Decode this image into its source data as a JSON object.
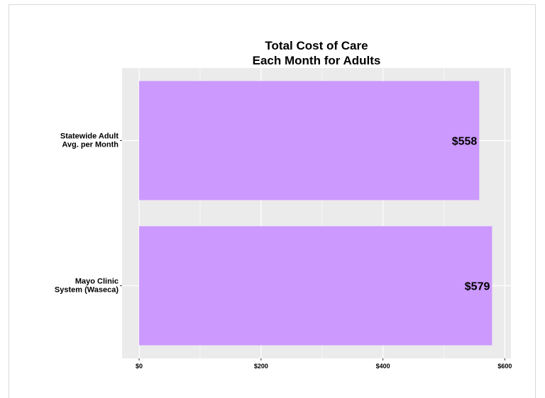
{
  "chart_data": {
    "type": "bar",
    "orientation": "horizontal",
    "title": [
      "Total Cost of Care",
      "Each Month for Adults"
    ],
    "categories": [
      [
        "Statewide Adult",
        "Avg. per Month"
      ],
      [
        "Mayo Clinic",
        "System (Waseca)"
      ]
    ],
    "values": [
      558,
      579
    ],
    "value_labels": [
      "$558",
      "$579"
    ],
    "xticks": [
      0,
      200,
      400,
      600
    ],
    "xtick_labels": [
      "$0",
      "$200",
      "$400",
      "$600"
    ],
    "xlim": [
      -28,
      610
    ],
    "xlabel": "",
    "ylabel": "",
    "grid": true,
    "legend": "none",
    "colors": {
      "bar": "#cc99ff",
      "panel": "#ebebeb",
      "grid": "#ffffff"
    }
  }
}
